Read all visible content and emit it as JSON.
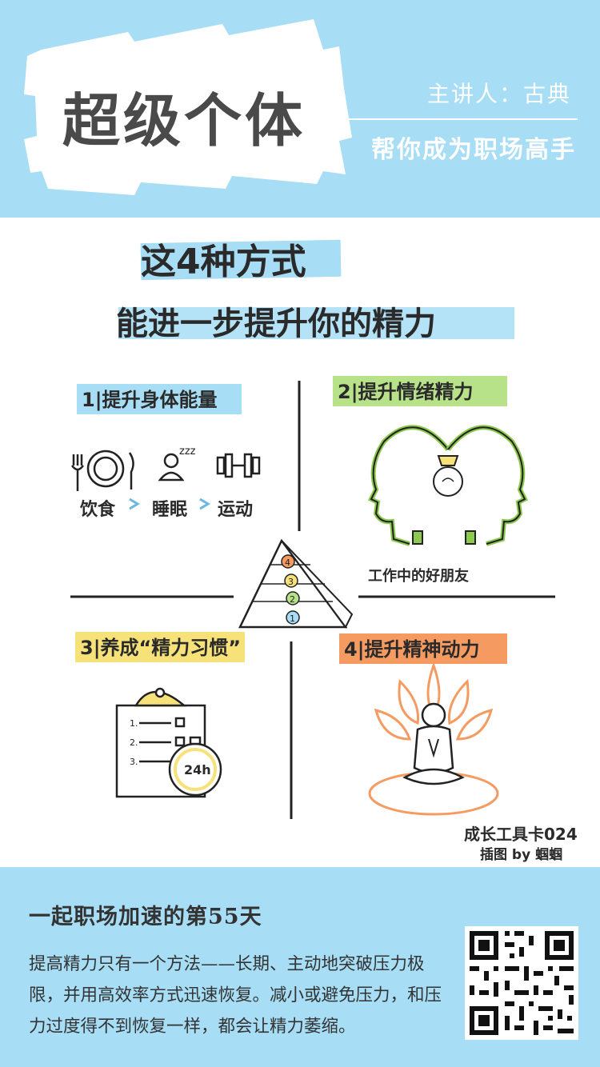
{
  "header": {
    "title": "超级个体",
    "speaker": "主讲人：古典",
    "slogan": "帮你成为职场高手"
  },
  "illustration": {
    "heading_line1": "这4种方式",
    "heading_line2": "能进一步提升你的精力",
    "quadrants": [
      {
        "label": "1|提升身体能量",
        "color": "#a7ddf5",
        "items": [
          "饮食",
          "睡眠",
          "运动"
        ],
        "sleep_mark": "zzz"
      },
      {
        "label": "2|提升情绪精力",
        "color": "#b8e28a",
        "caption": "工作中的好朋友"
      },
      {
        "label": "3|养成“精力习惯”",
        "color": "#f7e27a",
        "timer": "24h",
        "list_numbers": [
          "1.",
          "2.",
          "3."
        ]
      },
      {
        "label": "4|提升精神动力",
        "color": "#f59b62"
      }
    ],
    "pyramid_levels": [
      "4",
      "3",
      "2",
      "1"
    ],
    "pyramid_colors": [
      "#f59b62",
      "#f7e27a",
      "#b8e28a",
      "#a7ddf5"
    ],
    "card_number": "成长工具卡024",
    "credit": "插图 by 蝈蝈"
  },
  "footer": {
    "day_title": "一起职场加速的第55天",
    "body": "提高精力只有一个方法——长期、主动地突破压力极限，并用高效率方式迅速恢复。减小或避免压力，和压力过度得不到恢复一样，都会让精力萎缩。"
  }
}
